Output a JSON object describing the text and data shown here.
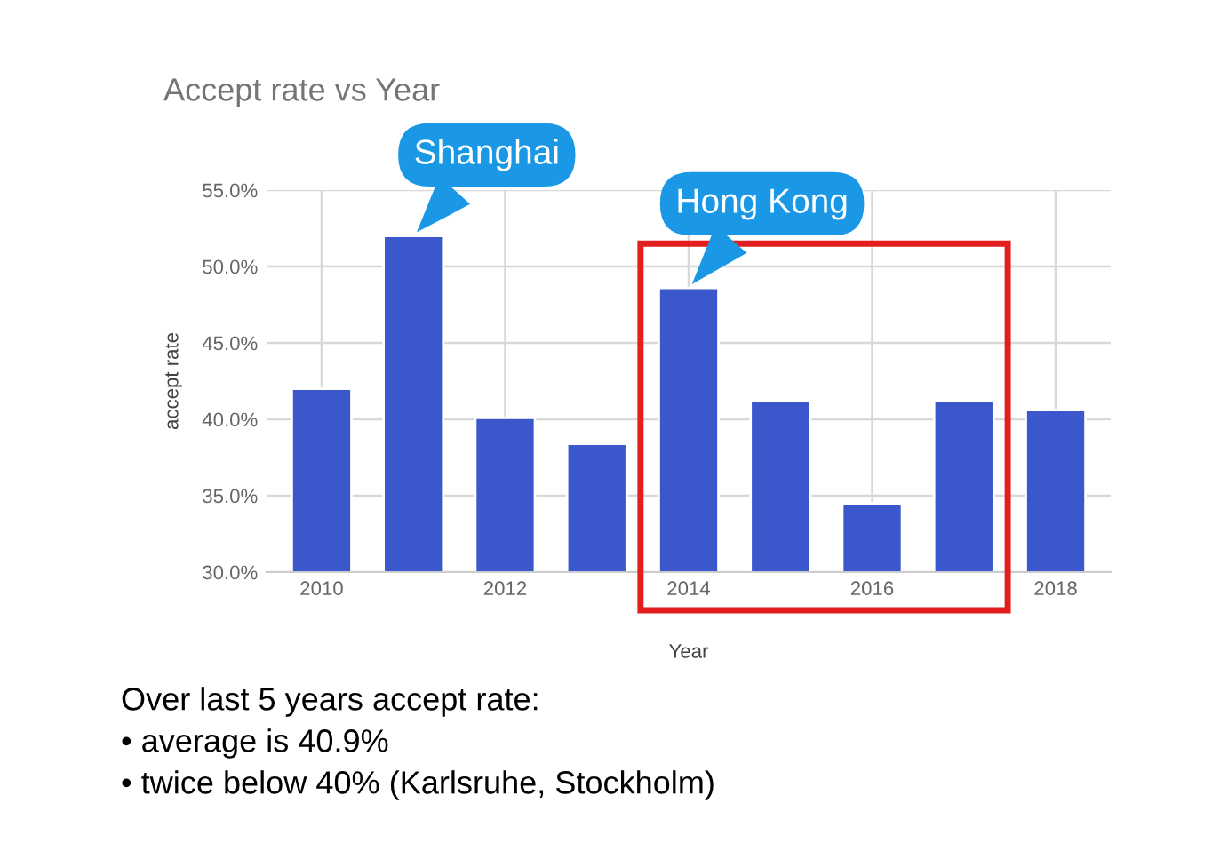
{
  "chart_data": {
    "type": "bar",
    "title": "Accept rate vs Year",
    "xlabel": "Year",
    "ylabel": "accept rate",
    "x": [
      2010,
      2011,
      2012,
      2013,
      2014,
      2015,
      2016,
      2017,
      2018
    ],
    "values": [
      42.0,
      52.0,
      40.1,
      38.4,
      48.6,
      41.2,
      34.5,
      41.2,
      40.6
    ],
    "color": "#3a57cc",
    "xlim": [
      2009.4,
      2018.6
    ],
    "xticks": [
      2010,
      2012,
      2014,
      2016,
      2018
    ],
    "ylim": [
      30,
      55
    ],
    "yticks": [
      {
        "value": 30,
        "label": "30.0%"
      },
      {
        "value": 35,
        "label": "35.0%"
      },
      {
        "value": 40,
        "label": "40.0%"
      },
      {
        "value": 45,
        "label": "45.0%"
      },
      {
        "value": 50,
        "label": "50.0%"
      },
      {
        "value": 55,
        "label": "55.0%"
      }
    ],
    "grid": true,
    "annotations": [
      {
        "text": "Shanghai",
        "x": 2011,
        "y": 52.0
      },
      {
        "text": "Hong Kong",
        "x": 2014,
        "y": 48.6
      },
      "Over last 5 years accept rate:",
      "• average is 40.9%",
      "• twice below 40% (Karlsruhe, Stockholm)"
    ]
  }
}
